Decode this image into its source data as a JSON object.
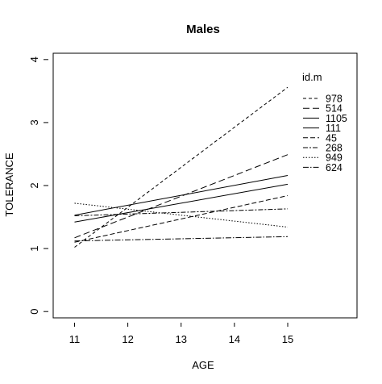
{
  "chart_data": {
    "type": "line",
    "title": "Males",
    "xlabel": "AGE",
    "ylabel": "TOLERANCE",
    "xlim": [
      10.6,
      16.3
    ],
    "ylim": [
      -0.1,
      4.1
    ],
    "x_ticks": [
      11,
      12,
      13,
      14,
      15
    ],
    "y_ticks": [
      0,
      1,
      2,
      3,
      4
    ],
    "grid": false,
    "legend_title": "id.m",
    "legend_position": "right",
    "series": [
      {
        "name": "978",
        "x": [
          11,
          15
        ],
        "values": [
          1.02,
          3.56
        ],
        "dash": "4,3"
      },
      {
        "name": "514",
        "x": [
          11,
          15
        ],
        "values": [
          1.17,
          2.49
        ],
        "dash": "8,4"
      },
      {
        "name": "1105",
        "x": [
          11,
          15
        ],
        "values": [
          1.53,
          2.16
        ],
        "dash": ""
      },
      {
        "name": "111",
        "x": [
          11,
          15
        ],
        "values": [
          1.42,
          2.02
        ],
        "dash": ""
      },
      {
        "name": "45",
        "x": [
          11,
          15
        ],
        "values": [
          1.1,
          1.84
        ],
        "dash": "6,3"
      },
      {
        "name": "268",
        "x": [
          11,
          15
        ],
        "values": [
          1.52,
          1.63
        ],
        "dash": "6,2,2,2"
      },
      {
        "name": "949",
        "x": [
          11,
          15
        ],
        "values": [
          1.72,
          1.34
        ],
        "dash": "1.5,2"
      },
      {
        "name": "624",
        "x": [
          11,
          15
        ],
        "values": [
          1.12,
          1.19
        ],
        "dash": "7,2,1.5,2"
      }
    ]
  }
}
